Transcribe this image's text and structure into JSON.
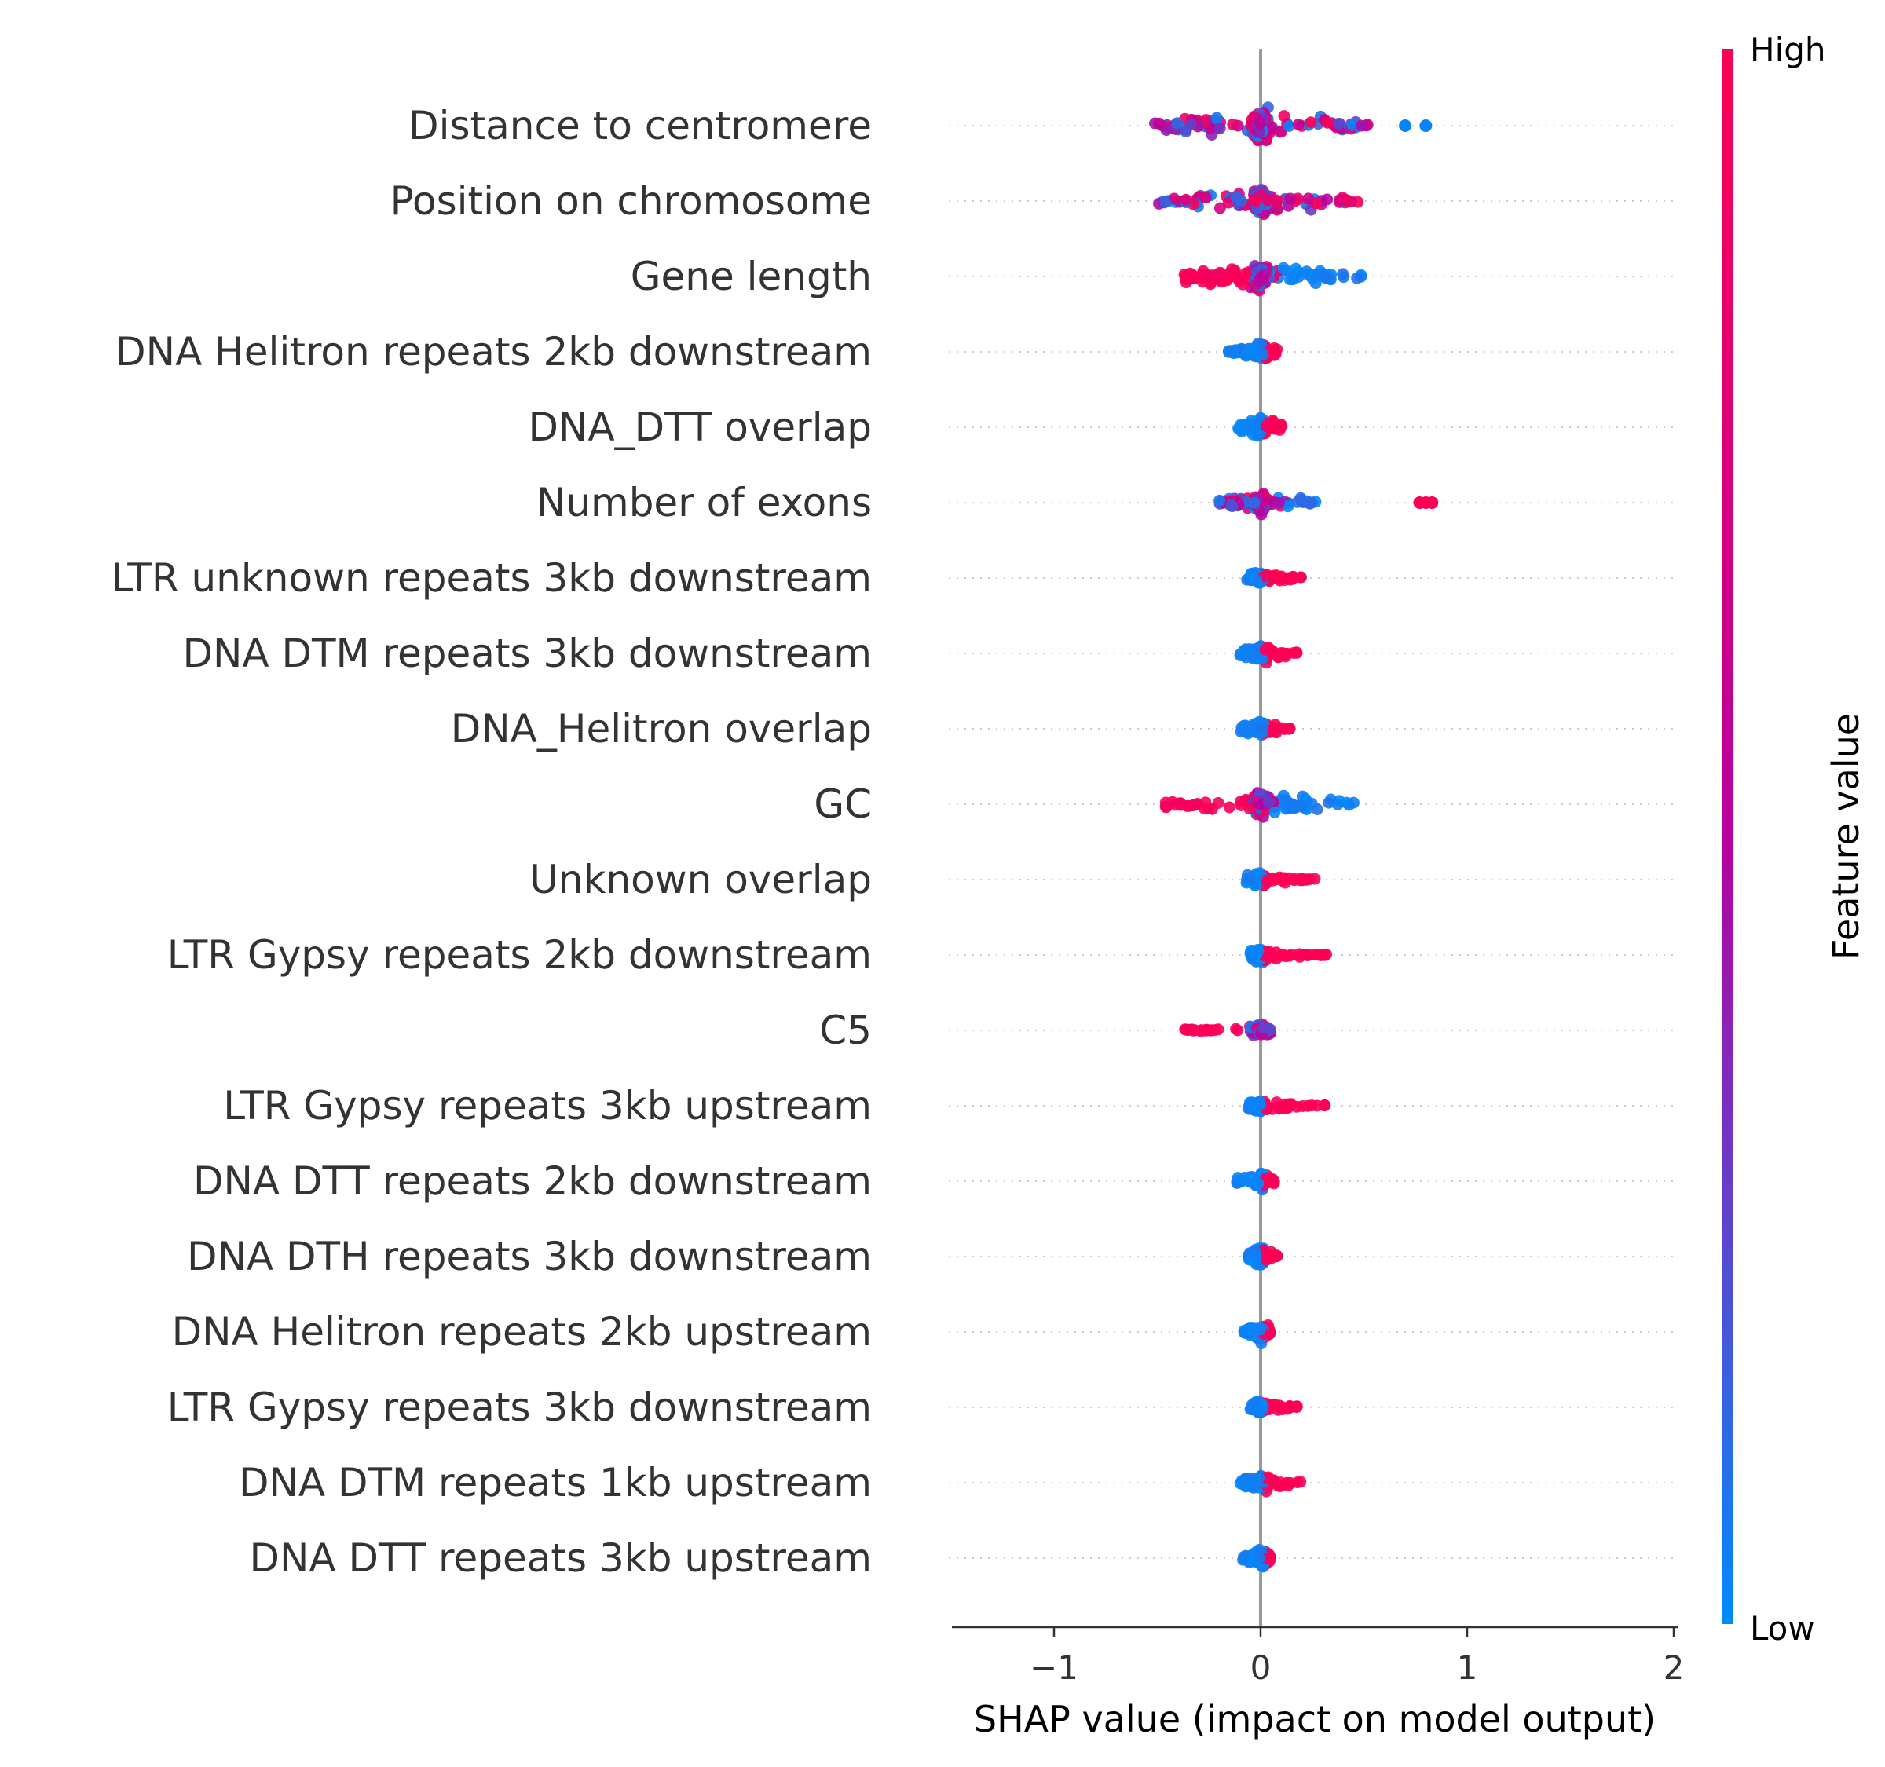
{
  "chart_data": {
    "type": "scatter",
    "subtype": "shap-beeswarm-summary",
    "title": "",
    "xlabel": "SHAP value (impact on model output)",
    "ylabel": "",
    "xlim": [
      -1.5,
      2
    ],
    "xticks": [
      {
        "value": -1,
        "label": "−1"
      },
      {
        "value": 0,
        "label": "0"
      },
      {
        "value": 1,
        "label": "1"
      },
      {
        "value": 2,
        "label": "2"
      }
    ],
    "reference_line_x": 0,
    "grid": "dotted horizontal row guides",
    "colorbar": {
      "title": "Feature value",
      "high_label": "High",
      "low_label": "Low",
      "high_color": "#ff0052",
      "mid_color": "#b800a0",
      "low_color": "#008bfb"
    },
    "features": [
      {
        "name": "Distance to centromere",
        "min": -0.52,
        "max": 0.56,
        "outliers": [
          0.7,
          0.8
        ],
        "spread": 0.5,
        "density": 1.0,
        "pattern": "mixed"
      },
      {
        "name": "Position on chromosome",
        "min": -0.5,
        "max": 0.5,
        "outliers": [],
        "spread": 0.42,
        "density": 1.0,
        "pattern": "mixed"
      },
      {
        "name": "Gene length",
        "min": -0.37,
        "max": 0.52,
        "outliers": [],
        "spread": 0.42,
        "density": 0.95,
        "pattern": "high-left"
      },
      {
        "name": "DNA Helitron repeats 2kb downstream",
        "min": -0.16,
        "max": 0.08,
        "outliers": [],
        "spread": 0.3,
        "density": 0.6,
        "pattern": "low-left"
      },
      {
        "name": "DNA_DTT overlap",
        "min": -0.11,
        "max": 0.1,
        "outliers": [],
        "spread": 0.3,
        "density": 0.6,
        "pattern": "low-left"
      },
      {
        "name": "Number of exons",
        "min": -0.2,
        "max": 0.27,
        "outliers": [
          0.77,
          0.8,
          0.83
        ],
        "spread": 0.3,
        "density": 0.65,
        "pattern": "mixed-low-right"
      },
      {
        "name": "LTR unknown repeats 3kb downstream",
        "min": -0.07,
        "max": 0.2,
        "outliers": [],
        "spread": 0.2,
        "density": 0.45,
        "pattern": "low-left"
      },
      {
        "name": "DNA DTM repeats 3kb downstream",
        "min": -0.1,
        "max": 0.18,
        "outliers": [],
        "spread": 0.3,
        "density": 0.55,
        "pattern": "low-left"
      },
      {
        "name": "DNA_Helitron overlap",
        "min": -0.1,
        "max": 0.15,
        "outliers": [],
        "spread": 0.24,
        "density": 0.5,
        "pattern": "low-left"
      },
      {
        "name": "GC",
        "min": -0.47,
        "max": 0.46,
        "outliers": [],
        "spread": 0.4,
        "density": 0.8,
        "pattern": "high-left"
      },
      {
        "name": "Unknown overlap",
        "min": -0.07,
        "max": 0.27,
        "outliers": [],
        "spread": 0.22,
        "density": 0.45,
        "pattern": "low-left"
      },
      {
        "name": "LTR Gypsy repeats 2kb downstream",
        "min": -0.05,
        "max": 0.32,
        "outliers": [],
        "spread": 0.22,
        "density": 0.45,
        "pattern": "low-left"
      },
      {
        "name": "C5",
        "min": -0.37,
        "max": 0.05,
        "outliers": [],
        "spread": 0.22,
        "density": 0.5,
        "pattern": "high-left"
      },
      {
        "name": "LTR Gypsy repeats 3kb upstream",
        "min": -0.06,
        "max": 0.33,
        "outliers": [],
        "spread": 0.2,
        "density": 0.45,
        "pattern": "low-left"
      },
      {
        "name": "DNA DTT repeats 2kb downstream",
        "min": -0.13,
        "max": 0.08,
        "outliers": [],
        "spread": 0.3,
        "density": 0.5,
        "pattern": "low-left"
      },
      {
        "name": "DNA DTH repeats 3kb downstream",
        "min": -0.06,
        "max": 0.08,
        "outliers": [],
        "spread": 0.3,
        "density": 0.5,
        "pattern": "low-left"
      },
      {
        "name": "DNA Helitron repeats 2kb upstream",
        "min": -0.08,
        "max": 0.05,
        "outliers": [],
        "spread": 0.3,
        "density": 0.5,
        "pattern": "low-left"
      },
      {
        "name": "LTR Gypsy repeats 3kb downstream",
        "min": -0.05,
        "max": 0.18,
        "outliers": [],
        "spread": 0.22,
        "density": 0.45,
        "pattern": "low-left"
      },
      {
        "name": "DNA DTM repeats 1kb upstream",
        "min": -0.1,
        "max": 0.2,
        "outliers": [],
        "spread": 0.28,
        "density": 0.5,
        "pattern": "low-left"
      },
      {
        "name": "DNA DTT repeats 3kb upstream",
        "min": -0.09,
        "max": 0.05,
        "outliers": [],
        "spread": 0.3,
        "density": 0.5,
        "pattern": "low-left"
      }
    ]
  }
}
